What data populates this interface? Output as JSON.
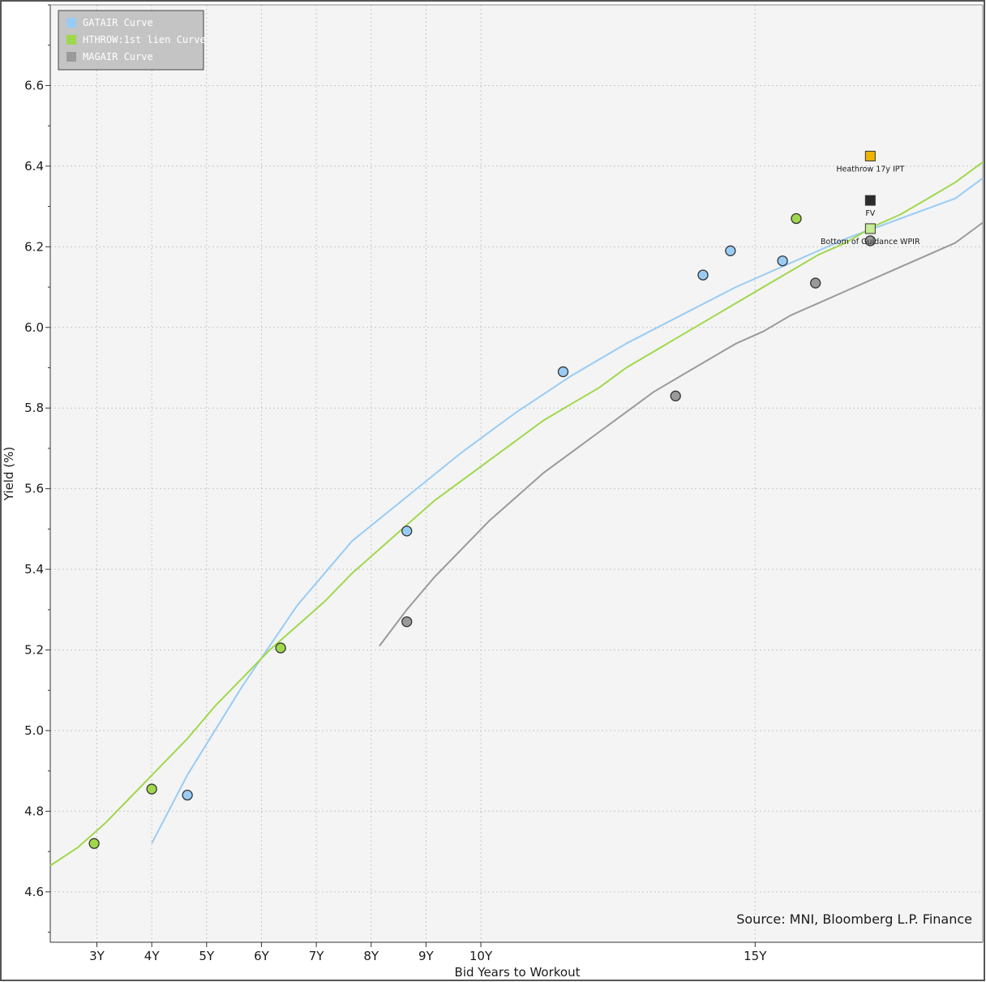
{
  "chart_data": {
    "type": "scatter",
    "title": "",
    "xlabel": "Bid Years to Workout",
    "ylabel": "Yield (%)",
    "xlim": [
      2,
      19
    ],
    "ylim": [
      4.475,
      6.8
    ],
    "x_ticks": [
      {
        "value": 2.85,
        "label": "3Y"
      },
      {
        "value": 3.85,
        "label": "4Y"
      },
      {
        "value": 4.85,
        "label": "5Y"
      },
      {
        "value": 5.85,
        "label": "6Y"
      },
      {
        "value": 6.85,
        "label": "7Y"
      },
      {
        "value": 7.85,
        "label": "8Y"
      },
      {
        "value": 8.85,
        "label": "9Y"
      },
      {
        "value": 9.85,
        "label": "10Y"
      },
      {
        "value": 14.85,
        "label": "15Y"
      }
    ],
    "y_ticks": [
      4.6,
      4.8,
      5.0,
      5.2,
      5.4,
      5.6,
      5.8,
      6.0,
      6.2,
      6.4,
      6.6
    ],
    "y_minor_step": 0.1,
    "grid": true,
    "legend_position": "top-left",
    "series": [
      {
        "name": "GATAIR Curve",
        "color": "#99ccf5",
        "points": [
          [
            4.5,
            4.84
          ],
          [
            8.5,
            5.495
          ],
          [
            11.35,
            5.89
          ],
          [
            13.9,
            6.13
          ],
          [
            14.4,
            6.19
          ],
          [
            15.35,
            6.165
          ]
        ],
        "curve": [
          [
            3.85,
            4.72
          ],
          [
            4.5,
            4.89
          ],
          [
            5.5,
            5.11
          ],
          [
            6.5,
            5.31
          ],
          [
            7.5,
            5.47
          ],
          [
            8.5,
            5.58
          ],
          [
            9.5,
            5.69
          ],
          [
            10.5,
            5.79
          ],
          [
            11.5,
            5.88
          ],
          [
            12.5,
            5.96
          ],
          [
            13.5,
            6.03
          ],
          [
            14.5,
            6.1
          ],
          [
            15.5,
            6.16
          ],
          [
            16.5,
            6.22
          ],
          [
            17.5,
            6.27
          ],
          [
            18.5,
            6.32
          ],
          [
            19.0,
            6.37
          ]
        ]
      },
      {
        "name": "HTHROW:1st lien Curve",
        "color": "#9fd84a",
        "points": [
          [
            2.8,
            4.72
          ],
          [
            3.85,
            4.855
          ],
          [
            6.2,
            5.205
          ],
          [
            15.6,
            6.27
          ]
        ],
        "curve": [
          [
            2.0,
            4.665
          ],
          [
            2.5,
            4.71
          ],
          [
            3.0,
            4.77
          ],
          [
            3.5,
            4.84
          ],
          [
            4.0,
            4.91
          ],
          [
            4.5,
            4.98
          ],
          [
            5.0,
            5.06
          ],
          [
            5.5,
            5.13
          ],
          [
            6.0,
            5.2
          ],
          [
            6.5,
            5.26
          ],
          [
            7.0,
            5.32
          ],
          [
            7.5,
            5.39
          ],
          [
            8.0,
            5.45
          ],
          [
            8.5,
            5.51
          ],
          [
            9.0,
            5.57
          ],
          [
            9.5,
            5.62
          ],
          [
            10.0,
            5.67
          ],
          [
            10.5,
            5.72
          ],
          [
            11.0,
            5.77
          ],
          [
            11.5,
            5.81
          ],
          [
            12.0,
            5.85
          ],
          [
            12.5,
            5.9
          ],
          [
            13.0,
            5.94
          ],
          [
            13.5,
            5.98
          ],
          [
            14.0,
            6.02
          ],
          [
            14.5,
            6.06
          ],
          [
            15.0,
            6.1
          ],
          [
            15.5,
            6.14
          ],
          [
            16.0,
            6.18
          ],
          [
            16.5,
            6.21
          ],
          [
            17.0,
            6.25
          ],
          [
            17.5,
            6.28
          ],
          [
            18.0,
            6.32
          ],
          [
            18.5,
            6.36
          ],
          [
            19.0,
            6.41
          ]
        ]
      },
      {
        "name": "MAGAIR Curve",
        "color": "#9a9a9a",
        "points": [
          [
            8.5,
            5.27
          ],
          [
            13.4,
            5.83
          ],
          [
            15.95,
            6.11
          ],
          [
            16.95,
            6.215
          ]
        ],
        "curve": [
          [
            8.0,
            5.21
          ],
          [
            8.5,
            5.3
          ],
          [
            9.0,
            5.38
          ],
          [
            9.5,
            5.45
          ],
          [
            10.0,
            5.52
          ],
          [
            10.5,
            5.58
          ],
          [
            11.0,
            5.64
          ],
          [
            11.5,
            5.69
          ],
          [
            12.0,
            5.74
          ],
          [
            12.5,
            5.79
          ],
          [
            13.0,
            5.84
          ],
          [
            13.5,
            5.88
          ],
          [
            14.0,
            5.92
          ],
          [
            14.5,
            5.96
          ],
          [
            15.0,
            5.99
          ],
          [
            15.5,
            6.03
          ],
          [
            16.0,
            6.06
          ],
          [
            16.5,
            6.09
          ],
          [
            17.0,
            6.12
          ],
          [
            17.5,
            6.15
          ],
          [
            18.0,
            6.18
          ],
          [
            18.5,
            6.21
          ],
          [
            19.0,
            6.26
          ]
        ]
      }
    ],
    "markers": [
      {
        "label": "Heathrow 17y IPT",
        "x": 16.95,
        "y": 6.425,
        "color": "#f0b400"
      },
      {
        "label": "FV",
        "x": 16.95,
        "y": 6.315,
        "color": "#2b2b2b"
      },
      {
        "label": "Bottom of Guidance WPIR",
        "x": 16.95,
        "y": 6.245,
        "color": "#c8ec96"
      }
    ],
    "source": "Source: MNI, Bloomberg L.P. Finance"
  }
}
